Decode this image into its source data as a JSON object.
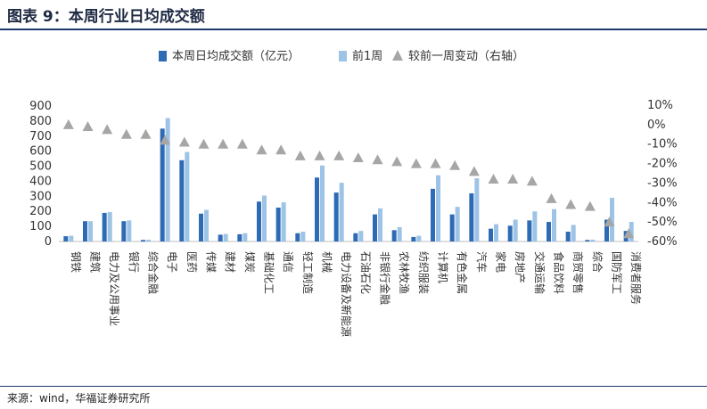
{
  "figure": {
    "title": "图表 9：本周行业日均成交额",
    "source": "来源：wind，华福证券研究所"
  },
  "colors": {
    "current": "#2e6bb5",
    "previous": "#9dc3e6",
    "change": "#a6a6a6",
    "rule": "#1f3a6d"
  },
  "chart_data": {
    "type": "bar",
    "title": "",
    "categories": [
      "钢铁",
      "建筑",
      "电力及公用事业",
      "银行",
      "综合金融",
      "电子",
      "医药",
      "传媒",
      "建材",
      "煤炭",
      "基础化工",
      "通信",
      "轻工制造",
      "机械",
      "电力设备及新能源",
      "石油石化",
      "非银行金融",
      "农林牧渔",
      "纺织服装",
      "计算机",
      "有色金属",
      "汽车",
      "家电",
      "房地产",
      "交通运输",
      "食品饮料",
      "商贸零售",
      "综合",
      "国防军工",
      "消费者服务"
    ],
    "series": [
      {
        "name": "本周日均成交额（亿元）",
        "type": "bar",
        "axis": "left",
        "values": [
          35,
          135,
          190,
          135,
          10,
          750,
          540,
          185,
          45,
          48,
          265,
          225,
          55,
          425,
          325,
          55,
          180,
          75,
          30,
          350,
          180,
          320,
          85,
          105,
          140,
          130,
          65,
          10,
          145,
          70
        ]
      },
      {
        "name": "前1周",
        "type": "bar",
        "axis": "left",
        "values": [
          38,
          135,
          195,
          140,
          12,
          820,
          595,
          210,
          50,
          55,
          305,
          260,
          65,
          505,
          390,
          70,
          220,
          95,
          38,
          440,
          230,
          420,
          115,
          145,
          200,
          215,
          110,
          12,
          290,
          130
        ]
      },
      {
        "name": "较前一周变动（右轴）",
        "type": "scatter",
        "axis": "right",
        "marker": "triangle",
        "values": [
          0.0,
          -0.01,
          -0.025,
          -0.05,
          -0.05,
          -0.08,
          -0.09,
          -0.1,
          -0.1,
          -0.1,
          -0.13,
          -0.13,
          -0.16,
          -0.16,
          -0.16,
          -0.17,
          -0.18,
          -0.19,
          -0.2,
          -0.2,
          -0.21,
          -0.24,
          -0.28,
          -0.28,
          -0.29,
          -0.38,
          -0.41,
          -0.42,
          -0.5,
          -0.56
        ]
      }
    ],
    "y_left": {
      "min": 0,
      "max": 900,
      "ticks": [
        "0",
        "50",
        "100",
        "150",
        "200",
        "250",
        "300",
        "350",
        "400",
        "450",
        "500",
        "550",
        "600",
        "650",
        "700",
        "750",
        "800",
        "850",
        "900"
      ],
      "tick_values": [
        0,
        50,
        100,
        150,
        200,
        250,
        300,
        350,
        400,
        450,
        500,
        550,
        600,
        650,
        700,
        750,
        800,
        850,
        900
      ]
    },
    "y_right": {
      "min": -0.6,
      "max": 0.1,
      "ticks": [
        "10%",
        "0%",
        "-10%",
        "-20%",
        "-30%",
        "-40%",
        "-50%",
        "-60%"
      ],
      "tick_values": [
        0.1,
        0,
        -0.1,
        -0.2,
        -0.3,
        -0.4,
        -0.5,
        -0.6
      ]
    },
    "grid": false,
    "legend_position": "top-center"
  }
}
